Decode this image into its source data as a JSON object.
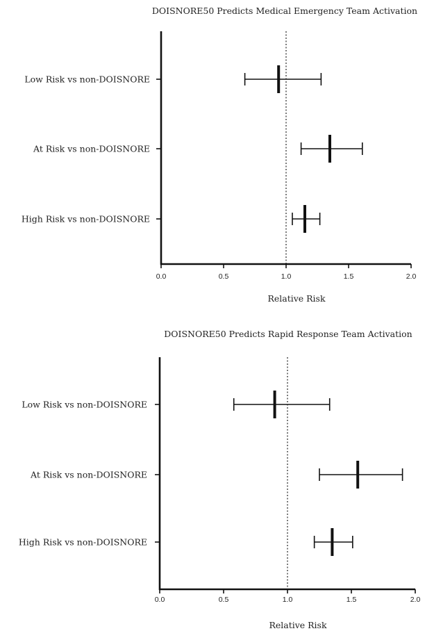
{
  "chart_data": [
    {
      "type": "forest",
      "title": "DOISNORE50 Predicts Medical Emergency Team Activation",
      "xlabel": "Relative Risk",
      "xlim": [
        0,
        2
      ],
      "xticks": [
        "0.0",
        "0.5",
        "1.0",
        "1.5",
        "2.0"
      ],
      "reference_line": 1.0,
      "rows": [
        {
          "label": "Low Risk vs non-DOISNORE",
          "estimate": 0.94,
          "lower": 0.67,
          "upper": 1.28
        },
        {
          "label": "At Risk vs non-DOISNORE",
          "estimate": 1.35,
          "lower": 1.12,
          "upper": 1.61
        },
        {
          "label": "High Risk vs non-DOISNORE",
          "estimate": 1.15,
          "lower": 1.05,
          "upper": 1.27
        }
      ]
    },
    {
      "type": "forest",
      "title": "DOISNORE50 Predicts Rapid Response Team Activation",
      "xlabel": "Relative Risk",
      "xlim": [
        0,
        2
      ],
      "xticks": [
        "0.0",
        "0.5",
        "1.0",
        "1.5",
        "2.0"
      ],
      "reference_line": 1.0,
      "rows": [
        {
          "label": "Low Risk vs non-DOISNORE",
          "estimate": 0.9,
          "lower": 0.58,
          "upper": 1.33
        },
        {
          "label": "At Risk vs non-DOISNORE",
          "estimate": 1.55,
          "lower": 1.25,
          "upper": 1.9
        },
        {
          "label": "High Risk vs non-DOISNORE",
          "estimate": 1.35,
          "lower": 1.21,
          "upper": 1.51
        }
      ]
    }
  ]
}
